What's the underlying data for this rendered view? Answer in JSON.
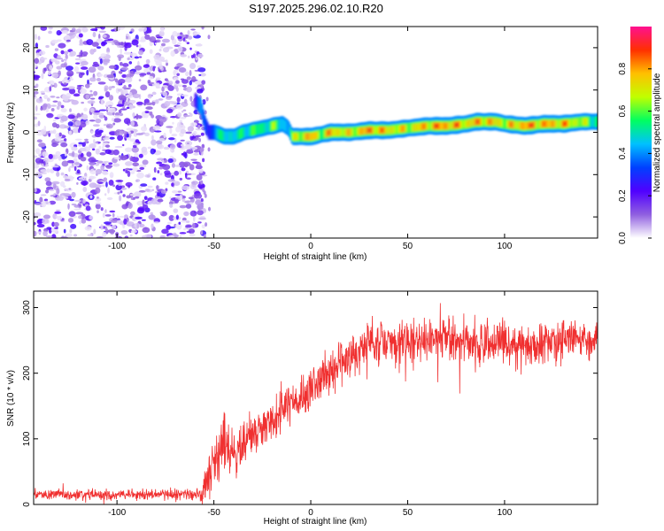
{
  "title": "S197.2025.296.02.10.R20",
  "chart_data": [
    {
      "type": "heatmap",
      "name": "spectrogram",
      "xlabel": "Height of straight line (km)",
      "ylabel": "Frequency (Hz)",
      "xlim": [
        -143,
        148
      ],
      "ylim": [
        -25,
        25
      ],
      "xticks": [
        -100,
        -50,
        0,
        50,
        100
      ],
      "yticks": [
        -20,
        -10,
        0,
        10,
        20
      ],
      "noise_region_x": [
        -143,
        -58
      ],
      "ridge": {
        "x": [
          -60,
          -57,
          -55,
          -53,
          -50,
          -45,
          -40,
          -35,
          -30,
          -25,
          -20,
          -15,
          -12,
          -10,
          -5,
          0,
          5,
          10,
          20,
          30,
          40,
          50,
          60,
          70,
          80,
          85,
          90,
          95,
          100,
          110,
          120,
          130,
          140,
          148
        ],
        "freq": [
          7.5,
          6.0,
          2.0,
          0.0,
          0.0,
          -1.0,
          -1.0,
          0.0,
          0.5,
          1.0,
          1.5,
          2.0,
          1.0,
          -1.0,
          -1.0,
          -1.0,
          -0.5,
          0.0,
          0.0,
          0.5,
          0.5,
          1.0,
          1.5,
          1.5,
          2.0,
          2.5,
          2.5,
          2.5,
          2.0,
          1.5,
          2.0,
          2.0,
          2.5,
          2.5
        ],
        "amplitude": [
          0.3,
          0.45,
          0.4,
          0.3,
          0.5,
          0.6,
          0.55,
          0.6,
          0.65,
          0.6,
          0.7,
          0.55,
          0.5,
          0.7,
          0.85,
          0.9,
          0.75,
          0.9,
          0.8,
          0.95,
          0.85,
          0.8,
          0.9,
          0.95,
          0.85,
          0.9,
          0.9,
          0.85,
          0.8,
          0.95,
          0.9,
          0.9,
          0.75,
          0.6
        ]
      },
      "colorbar": {
        "label": "Normalized spectral amplitude",
        "range": [
          0.0,
          1.0
        ],
        "ticks": [
          "0.0",
          "0.2",
          "0.4",
          "0.6",
          "0.8"
        ],
        "colors": [
          "#ffffff",
          "#9060e0",
          "#5000ff",
          "#0040ff",
          "#00c0ff",
          "#00ff60",
          "#c0ff00",
          "#ffc000",
          "#ff3000",
          "#ff1090"
        ]
      }
    },
    {
      "type": "line",
      "name": "snr",
      "xlabel": "Height of straight line (km)",
      "ylabel": "SNR (10 * v/v)",
      "xlim": [
        -143,
        148
      ],
      "ylim": [
        0,
        325
      ],
      "xticks": [
        -100,
        -50,
        0,
        50,
        100
      ],
      "yticks": [
        0,
        100,
        200,
        300
      ],
      "color": "#f03030",
      "trend": {
        "x": [
          -143,
          -60,
          -55,
          -50,
          -45,
          -40,
          -30,
          -20,
          -10,
          0,
          10,
          20,
          30,
          40,
          50,
          60,
          70,
          80,
          90,
          100,
          110,
          120,
          130,
          140,
          148
        ],
        "y": [
          15,
          15,
          20,
          70,
          95,
          75,
          105,
          130,
          155,
          180,
          200,
          225,
          245,
          250,
          245,
          255,
          255,
          250,
          240,
          245,
          240,
          245,
          250,
          250,
          255
        ]
      },
      "noise_amplitude": {
        "x": [
          -143,
          -60,
          -50,
          -30,
          0,
          30,
          60,
          100,
          148
        ],
        "y": [
          12,
          12,
          60,
          45,
          50,
          55,
          50,
          55,
          45
        ]
      }
    }
  ]
}
